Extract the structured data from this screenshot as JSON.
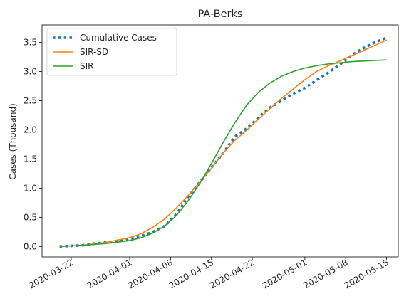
{
  "chart_data": {
    "type": "line",
    "title": "PA-Berks",
    "xlabel": "",
    "ylabel": "Cases (Thousand)",
    "x_axis_type": "date",
    "xlim": [
      "2020-03-17",
      "2020-05-17"
    ],
    "ylim": [
      -0.18,
      3.8
    ],
    "x_ticks": [
      "2020-03-22",
      "2020-04-01",
      "2020-04-08",
      "2020-04-15",
      "2020-04-22",
      "2020-05-01",
      "2020-05-08",
      "2020-05-15"
    ],
    "y_ticks": [
      0.0,
      0.5,
      1.0,
      1.5,
      2.0,
      2.5,
      3.0,
      3.5
    ],
    "y_tick_labels": [
      "0.0",
      "0.5",
      "1.0",
      "1.5",
      "2.0",
      "2.5",
      "3.0",
      "3.5"
    ],
    "grid": false,
    "legend_position": "top-left",
    "series": [
      {
        "name": "Cumulative Cases",
        "color": "#1f77b4",
        "style": "dotted",
        "x": [
          "2020-03-20",
          "2020-03-22",
          "2020-03-24",
          "2020-03-26",
          "2020-03-28",
          "2020-03-30",
          "2020-04-01",
          "2020-04-03",
          "2020-04-05",
          "2020-04-07",
          "2020-04-09",
          "2020-04-11",
          "2020-04-13",
          "2020-04-15",
          "2020-04-17",
          "2020-04-19",
          "2020-04-21",
          "2020-04-23",
          "2020-04-25",
          "2020-04-27",
          "2020-04-29",
          "2020-05-01",
          "2020-05-03",
          "2020-05-05",
          "2020-05-07",
          "2020-05-09",
          "2020-05-11",
          "2020-05-13",
          "2020-05-15"
        ],
        "values": [
          0.0,
          0.01,
          0.02,
          0.05,
          0.07,
          0.09,
          0.13,
          0.18,
          0.25,
          0.35,
          0.55,
          0.85,
          1.1,
          1.35,
          1.6,
          1.88,
          2.02,
          2.2,
          2.38,
          2.5,
          2.62,
          2.72,
          2.85,
          2.98,
          3.12,
          3.28,
          3.4,
          3.5,
          3.58
        ]
      },
      {
        "name": "SIR-SD",
        "color": "#ff7f0e",
        "style": "solid",
        "x": [
          "2020-03-20",
          "2020-03-24",
          "2020-03-28",
          "2020-04-01",
          "2020-04-03",
          "2020-04-05",
          "2020-04-07",
          "2020-04-09",
          "2020-04-11",
          "2020-04-13",
          "2020-04-15",
          "2020-04-17",
          "2020-04-19",
          "2020-04-21",
          "2020-04-23",
          "2020-04-25",
          "2020-04-27",
          "2020-04-29",
          "2020-05-01",
          "2020-05-03",
          "2020-05-05",
          "2020-05-07",
          "2020-05-09",
          "2020-05-11",
          "2020-05-13",
          "2020-05-15"
        ],
        "values": [
          0.0,
          0.02,
          0.07,
          0.15,
          0.22,
          0.33,
          0.47,
          0.66,
          0.87,
          1.1,
          1.34,
          1.6,
          1.82,
          1.99,
          2.18,
          2.36,
          2.54,
          2.7,
          2.86,
          3.0,
          3.1,
          3.18,
          3.27,
          3.36,
          3.45,
          3.54
        ]
      },
      {
        "name": "SIR",
        "color": "#2ca02c",
        "style": "solid",
        "x": [
          "2020-03-20",
          "2020-03-24",
          "2020-03-28",
          "2020-04-01",
          "2020-04-03",
          "2020-04-05",
          "2020-04-07",
          "2020-04-09",
          "2020-04-11",
          "2020-04-13",
          "2020-04-15",
          "2020-04-17",
          "2020-04-19",
          "2020-04-21",
          "2020-04-23",
          "2020-04-25",
          "2020-04-27",
          "2020-04-29",
          "2020-05-01",
          "2020-05-03",
          "2020-05-05",
          "2020-05-07",
          "2020-05-09",
          "2020-05-11",
          "2020-05-13",
          "2020-05-15"
        ],
        "values": [
          0.0,
          0.02,
          0.05,
          0.1,
          0.15,
          0.23,
          0.35,
          0.53,
          0.78,
          1.08,
          1.42,
          1.78,
          2.12,
          2.42,
          2.64,
          2.8,
          2.92,
          3.0,
          3.06,
          3.1,
          3.13,
          3.15,
          3.17,
          3.18,
          3.19,
          3.2
        ]
      }
    ]
  }
}
